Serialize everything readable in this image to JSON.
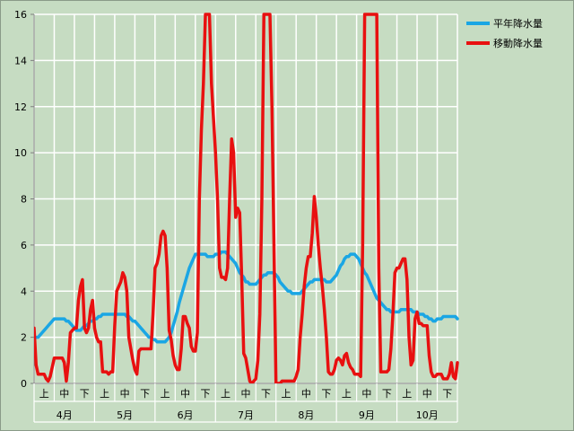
{
  "chart_data": {
    "type": "line",
    "ylim": [
      0,
      16
    ],
    "yticks": [
      0,
      2,
      4,
      6,
      8,
      10,
      12,
      14,
      16
    ],
    "grid": true,
    "legend_position": "top-right",
    "months": [
      "4月",
      "5月",
      "6月",
      "7月",
      "8月",
      "9月",
      "10月"
    ],
    "decades": [
      "上",
      "中",
      "下"
    ],
    "points_per_decade": 10,
    "series": [
      {
        "name": "平年降水量",
        "color": "#1aa6e4",
        "values": [
          2.0,
          2.0,
          2.0,
          2.1,
          2.2,
          2.3,
          2.4,
          2.5,
          2.6,
          2.7,
          2.8,
          2.8,
          2.8,
          2.8,
          2.8,
          2.8,
          2.7,
          2.7,
          2.6,
          2.5,
          2.4,
          2.3,
          2.3,
          2.3,
          2.4,
          2.5,
          2.5,
          2.6,
          2.7,
          2.7,
          2.8,
          2.8,
          2.9,
          2.9,
          3.0,
          3.0,
          3.0,
          3.0,
          3.0,
          3.0,
          3.0,
          3.0,
          3.0,
          3.0,
          3.0,
          3.0,
          2.9,
          2.9,
          2.8,
          2.7,
          2.7,
          2.6,
          2.5,
          2.4,
          2.3,
          2.2,
          2.1,
          2.0,
          2.0,
          1.9,
          1.9,
          1.8,
          1.8,
          1.8,
          1.8,
          1.8,
          1.9,
          2.0,
          2.2,
          2.5,
          2.8,
          3.1,
          3.5,
          3.8,
          4.1,
          4.4,
          4.7,
          5.0,
          5.2,
          5.4,
          5.6,
          5.6,
          5.6,
          5.6,
          5.6,
          5.6,
          5.5,
          5.5,
          5.5,
          5.5,
          5.6,
          5.6,
          5.6,
          5.7,
          5.7,
          5.7,
          5.6,
          5.5,
          5.4,
          5.3,
          5.2,
          5.0,
          4.8,
          4.7,
          4.6,
          4.4,
          4.4,
          4.3,
          4.3,
          4.3,
          4.3,
          4.4,
          4.5,
          4.6,
          4.7,
          4.7,
          4.8,
          4.8,
          4.8,
          4.8,
          4.7,
          4.6,
          4.4,
          4.3,
          4.2,
          4.1,
          4.0,
          4.0,
          3.9,
          3.9,
          3.9,
          3.9,
          3.9,
          4.0,
          4.1,
          4.2,
          4.3,
          4.4,
          4.4,
          4.5,
          4.5,
          4.5,
          4.5,
          4.5,
          4.5,
          4.4,
          4.4,
          4.4,
          4.5,
          4.6,
          4.7,
          4.9,
          5.1,
          5.2,
          5.4,
          5.5,
          5.5,
          5.6,
          5.6,
          5.6,
          5.5,
          5.4,
          5.2,
          5.0,
          4.8,
          4.7,
          4.5,
          4.3,
          4.1,
          3.9,
          3.7,
          3.6,
          3.5,
          3.4,
          3.3,
          3.2,
          3.2,
          3.1,
          3.1,
          3.1,
          3.1,
          3.1,
          3.2,
          3.2,
          3.2,
          3.2,
          3.2,
          3.2,
          3.1,
          3.1,
          3.1,
          3.0,
          3.0,
          3.0,
          2.9,
          2.9,
          2.8,
          2.8,
          2.7,
          2.7,
          2.8,
          2.8,
          2.8,
          2.9,
          2.9,
          2.9,
          2.9,
          2.9,
          2.9,
          2.9,
          2.8
        ]
      },
      {
        "name": "移動降水量",
        "color": "#e81010",
        "values": [
          2.4,
          0.8,
          0.4,
          0.4,
          0.4,
          0.4,
          0.2,
          0.1,
          0.3,
          0.7,
          1.1,
          1.1,
          1.1,
          1.1,
          1.1,
          0.9,
          0.1,
          0.9,
          2.2,
          2.3,
          2.4,
          2.4,
          3.6,
          4.2,
          4.5,
          2.4,
          2.2,
          2.4,
          3.2,
          3.6,
          2.4,
          2.0,
          1.8,
          1.8,
          0.5,
          0.5,
          0.5,
          0.4,
          0.5,
          0.5,
          2.5,
          4.0,
          4.2,
          4.4,
          4.8,
          4.6,
          4.0,
          2.0,
          1.5,
          1.0,
          0.6,
          0.4,
          1.4,
          1.5,
          1.5,
          1.5,
          1.5,
          1.5,
          1.5,
          3.0,
          5.0,
          5.2,
          5.6,
          6.4,
          6.6,
          6.4,
          5.0,
          2.3,
          1.9,
          1.2,
          0.8,
          0.6,
          0.6,
          1.5,
          2.9,
          2.9,
          2.6,
          2.4,
          1.6,
          1.4,
          1.4,
          2.2,
          8.0,
          11.0,
          13.0,
          16.0,
          16.0,
          16.0,
          13.0,
          11.5,
          10.0,
          8.0,
          5.0,
          4.6,
          4.6,
          4.5,
          5.0,
          8.0,
          10.6,
          10.0,
          7.2,
          7.6,
          7.4,
          4.6,
          1.3,
          1.1,
          0.6,
          0.1,
          0.0,
          0.1,
          0.2,
          1.0,
          3.0,
          8.0,
          16.0,
          16.0,
          16.0,
          16.0,
          12.0,
          6.0,
          0.0,
          0.0,
          0.0,
          0.1,
          0.1,
          0.1,
          0.1,
          0.1,
          0.1,
          0.1,
          0.3,
          0.6,
          2.0,
          3.0,
          4.2,
          5.0,
          5.5,
          5.5,
          6.5,
          8.1,
          7.2,
          6.0,
          5.0,
          4.2,
          3.2,
          2.0,
          0.5,
          0.4,
          0.4,
          0.6,
          1.0,
          1.1,
          1.0,
          0.8,
          1.2,
          1.3,
          0.9,
          0.7,
          0.6,
          0.4,
          0.4,
          0.4,
          0.3,
          6.0,
          16.0,
          16.0,
          16.0,
          16.0,
          16.0,
          16.0,
          16.0,
          5.0,
          0.5,
          0.5,
          0.5,
          0.5,
          0.6,
          1.5,
          3.0,
          4.8,
          5.0,
          5.0,
          5.2,
          5.4,
          5.4,
          4.5,
          2.0,
          0.8,
          1.0,
          2.8,
          3.1,
          2.6,
          2.6,
          2.5,
          2.5,
          2.5,
          1.2,
          0.5,
          0.3,
          0.3,
          0.4,
          0.4,
          0.4,
          0.2,
          0.2,
          0.2,
          0.4,
          0.9,
          0.3,
          0.2,
          0.9
        ]
      }
    ]
  }
}
